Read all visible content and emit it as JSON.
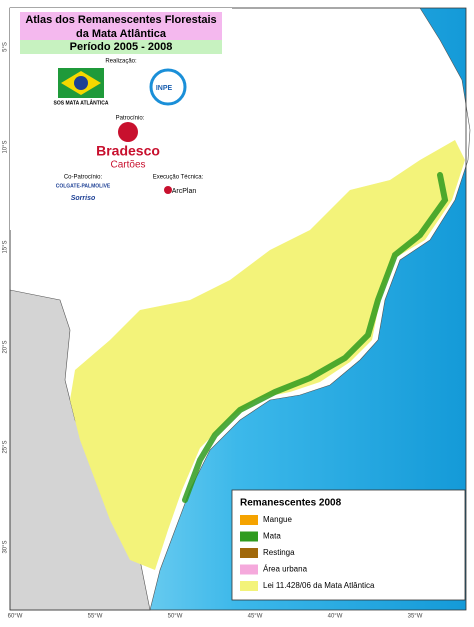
{
  "header": {
    "title_lines": [
      "Atlas dos Remanescentes Florestais",
      "da Mata Atlântica"
    ],
    "period": "Período 2005 - 2008"
  },
  "credits": {
    "realizacao": "Realização:",
    "sos": "SOS MATA ATLÂNTICA",
    "inpe": "INPE",
    "patrocinio": "Patrocínio:",
    "bradesco": "Bradesco",
    "cartoes": "Cartões",
    "copatrocinio": "Co-Patrocínio:",
    "colgate": "COLGATE-PALMOLIVE",
    "sorriso": "Sorriso",
    "execucao": "Execução Técnica:",
    "arcplan": "ArcPlan"
  },
  "legend": {
    "title": "Remanescentes 2008",
    "items": [
      {
        "label": "Mangue",
        "color": "#f5a300"
      },
      {
        "label": "Mata",
        "color": "#2f9b1f"
      },
      {
        "label": "Restinga",
        "color": "#a0680a"
      },
      {
        "label": "Área urbana",
        "color": "#f5a9dc"
      },
      {
        "label": "Lei 11.428/06 da Mata Atlântica",
        "color": "#f3f37a"
      }
    ]
  },
  "axes": {
    "longitude": [
      "60°W",
      "55°W",
      "50°W",
      "45°W",
      "40°W",
      "35°W"
    ],
    "latitude": [
      "5°S",
      "10°S",
      "15°S",
      "20°S",
      "25°S",
      "30°S"
    ]
  }
}
